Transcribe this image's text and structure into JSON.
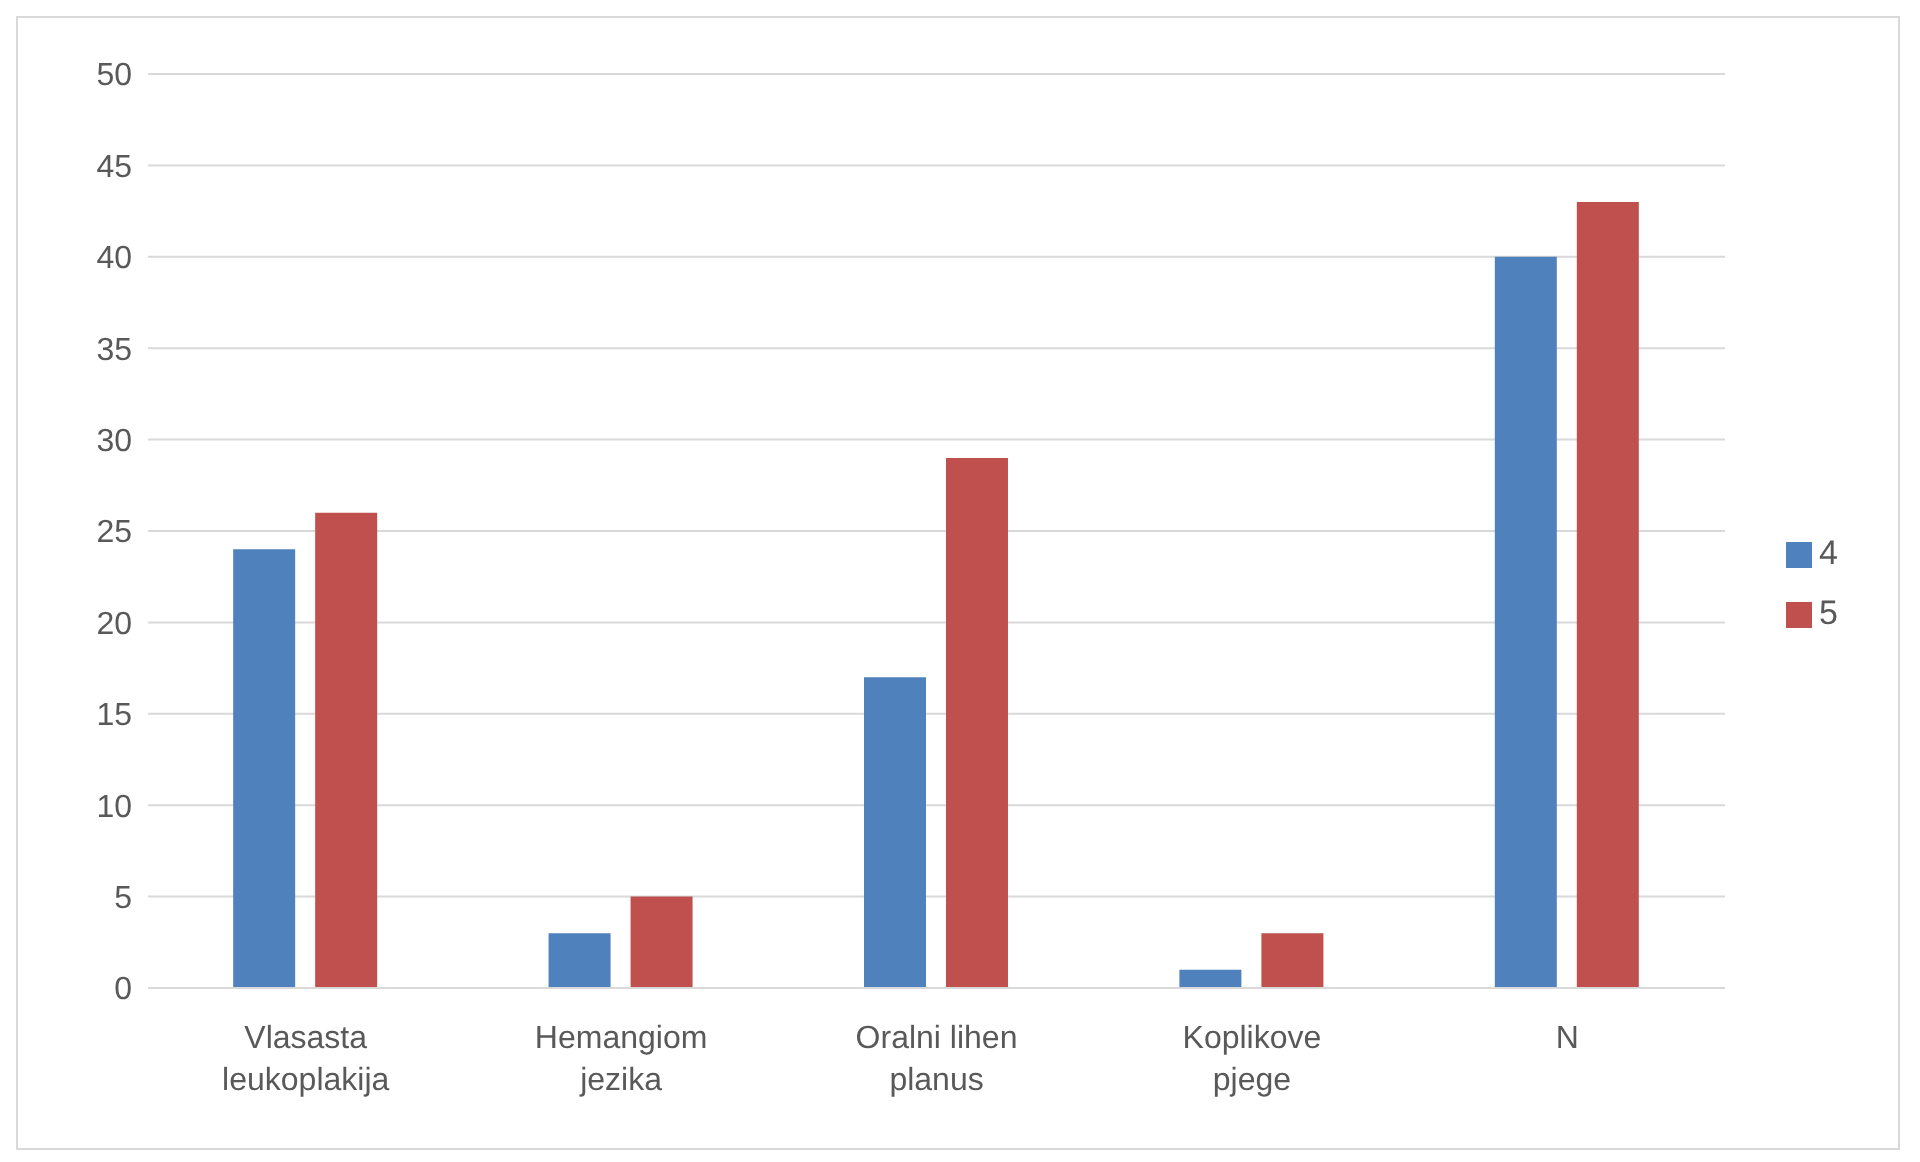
{
  "chart_data": {
    "type": "bar",
    "categories": [
      "Vlasasta leukoplakija",
      "Hemangiom jezika",
      "Oralni lihen planus",
      "Koplikove pjege",
      "N"
    ],
    "series": [
      {
        "name": "4",
        "color": "#4f81bd",
        "values": [
          24,
          3,
          17,
          1,
          40
        ]
      },
      {
        "name": "5",
        "color": "#c0504d",
        "values": [
          26,
          5,
          29,
          3,
          43
        ]
      }
    ],
    "ylim": [
      0,
      50
    ],
    "yticks": [
      0,
      5,
      10,
      15,
      20,
      25,
      30,
      35,
      40,
      45,
      50
    ],
    "grid": "y",
    "legend": "right"
  }
}
